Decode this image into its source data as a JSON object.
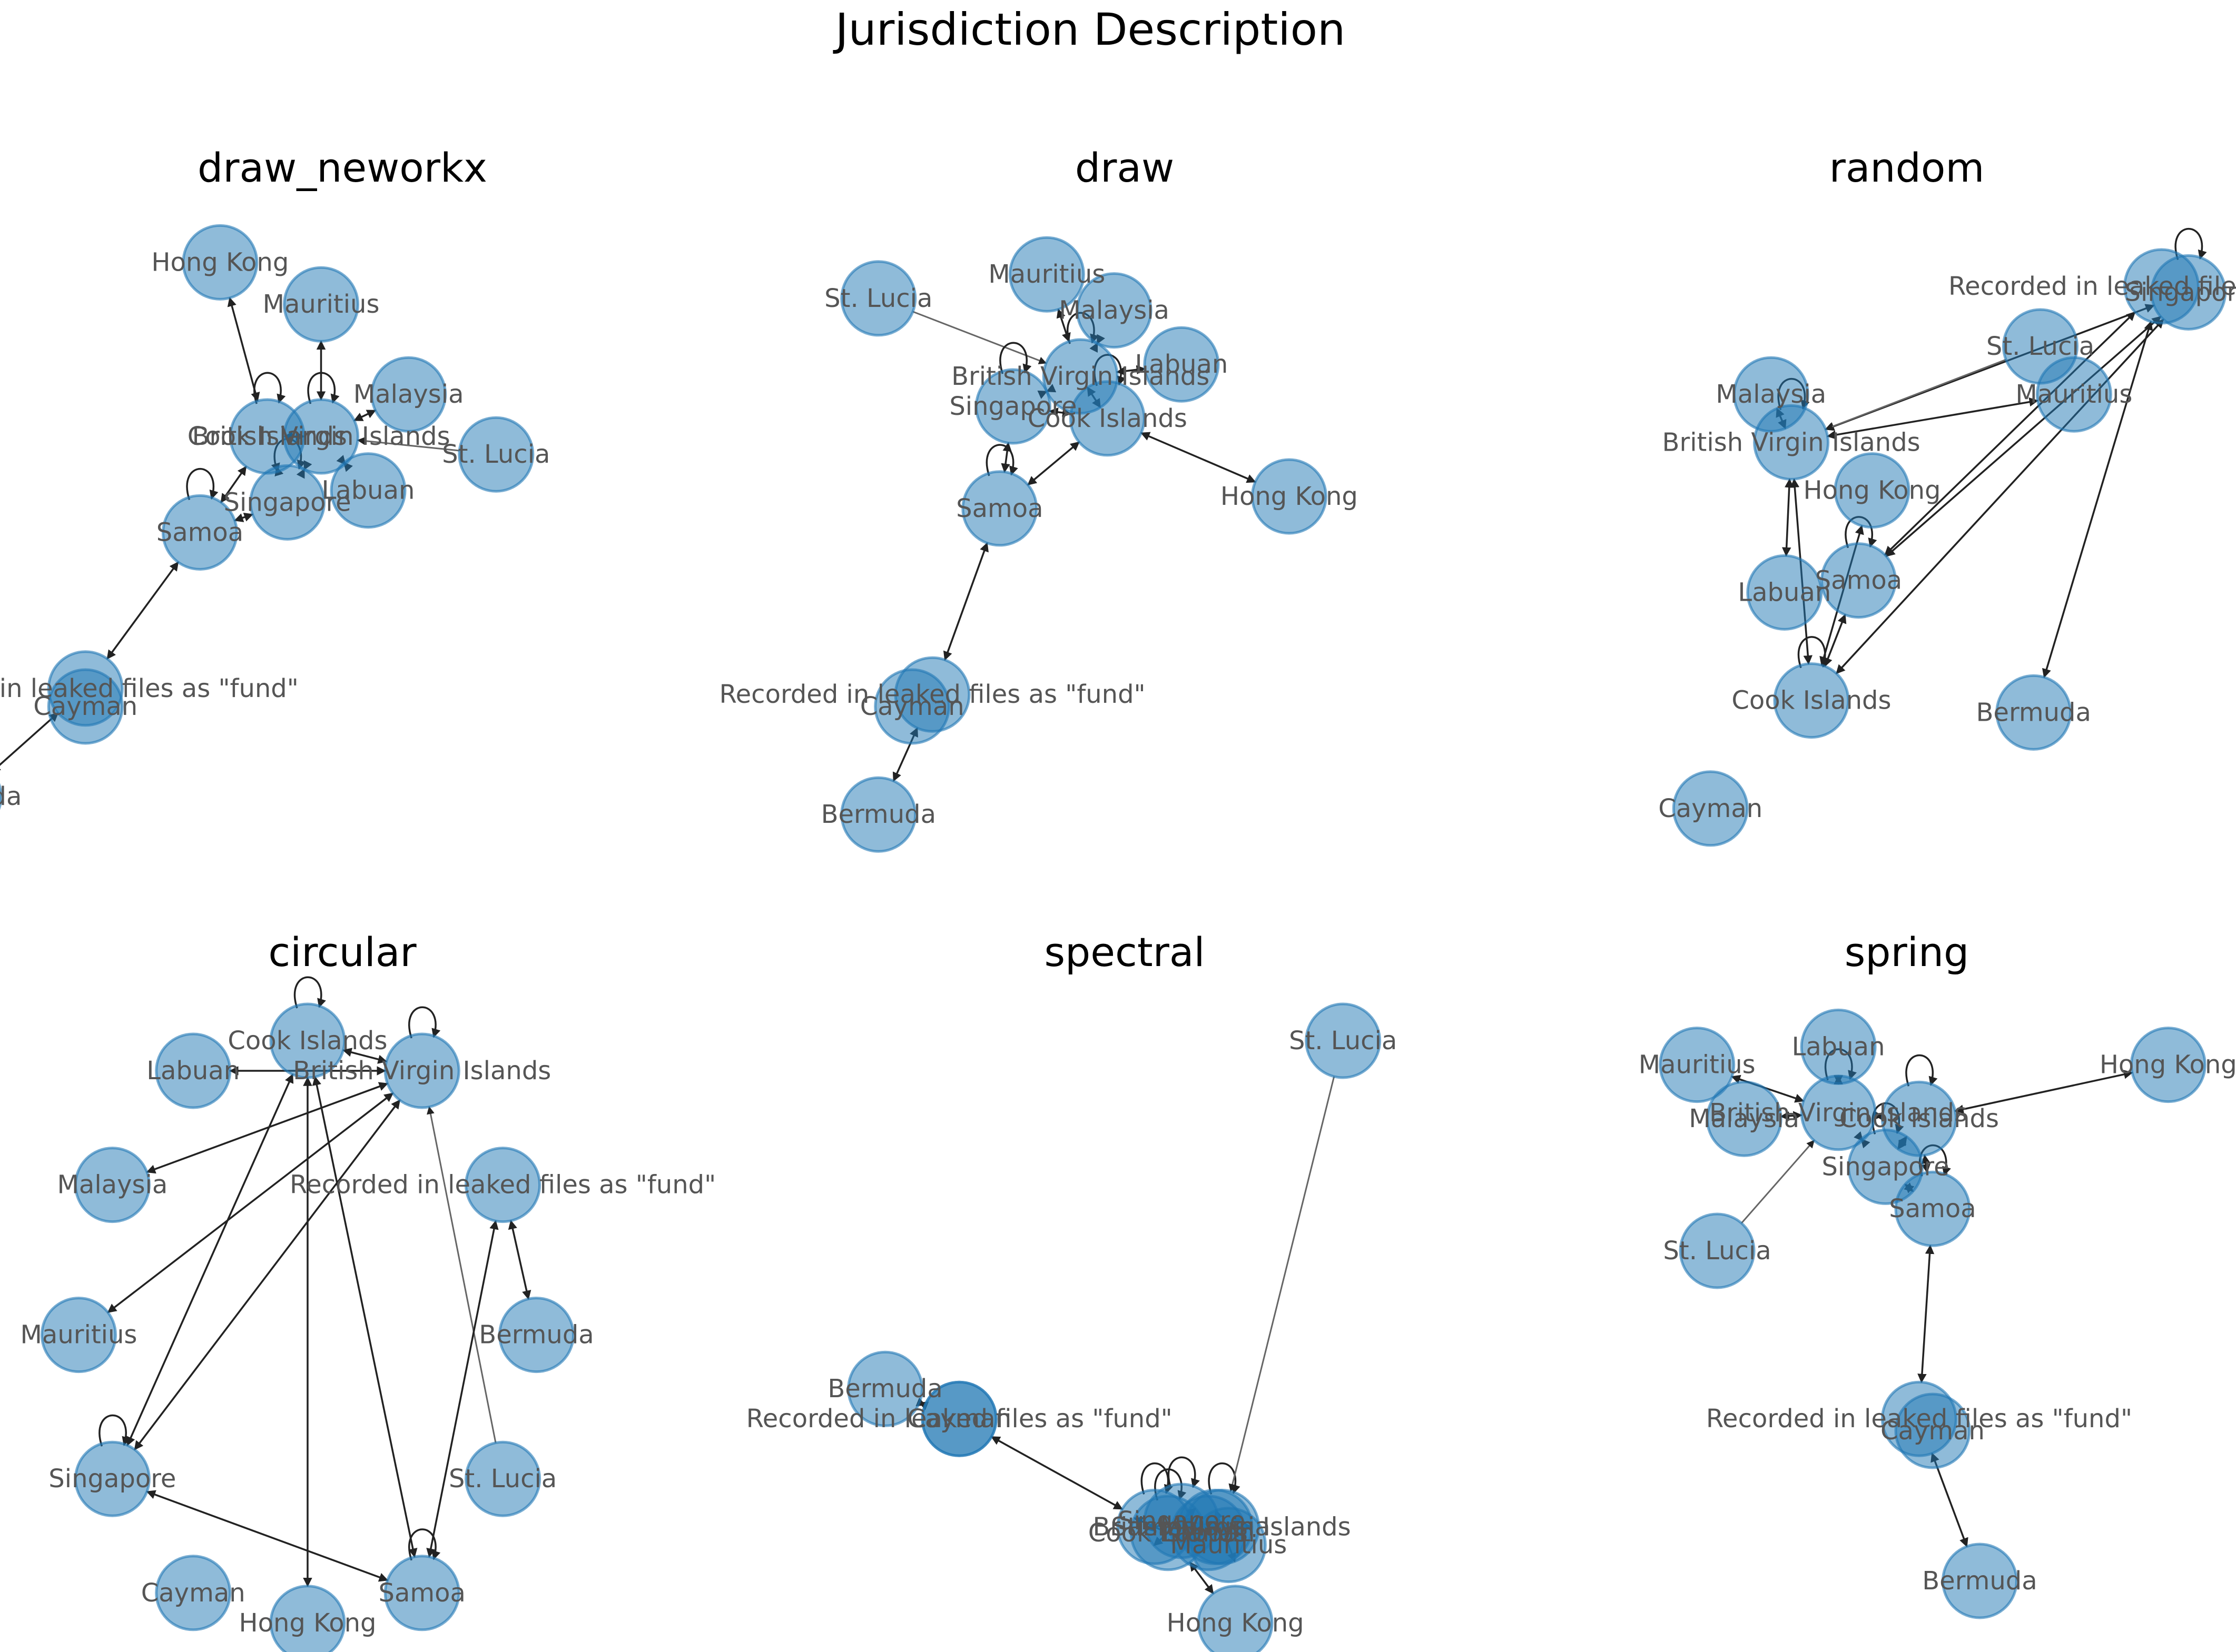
{
  "title": "Jurisdiction Description",
  "colors": {
    "node": "#1f77b4",
    "edge": "#222222",
    "label": "#555555"
  },
  "nodes": [
    "Hong Kong",
    "Mauritius",
    "Malaysia",
    "St. Lucia",
    "Cook Islands",
    "British Virgin Islands",
    "Labuan",
    "Singapore",
    "Samoa",
    "Recorded in leaked files as \"fund\"",
    "Cayman",
    "Bermuda"
  ],
  "edges": [
    [
      "Hong Kong",
      "Cook Islands"
    ],
    [
      "Cook Islands",
      "Cook Islands"
    ],
    [
      "Cook Islands",
      "British Virgin Islands"
    ],
    [
      "British Virgin Islands",
      "British Virgin Islands"
    ],
    [
      "British Virgin Islands",
      "Mauritius"
    ],
    [
      "British Virgin Islands",
      "Malaysia"
    ],
    [
      "British Virgin Islands",
      "Labuan"
    ],
    [
      "British Virgin Islands",
      "Singapore"
    ],
    [
      "St. Lucia",
      "British Virgin Islands"
    ],
    [
      "Singapore",
      "Singapore"
    ],
    [
      "Singapore",
      "Cook Islands"
    ],
    [
      "Samoa",
      "Samoa"
    ],
    [
      "Samoa",
      "Singapore"
    ],
    [
      "Samoa",
      "Cook Islands"
    ],
    [
      "Samoa",
      "Recorded in leaked files as \"fund\""
    ],
    [
      "Recorded in leaked files as \"fund\"",
      "Bermuda"
    ]
  ],
  "panels": [
    {
      "title": "draw_neworkx",
      "positions": {
        "Hong Kong": [
          0.28,
          0.06
        ],
        "Mauritius": [
          0.43,
          0.13
        ],
        "Malaysia": [
          0.56,
          0.28
        ],
        "St. Lucia": [
          0.69,
          0.38
        ],
        "Cook Islands": [
          0.35,
          0.35
        ],
        "British Virgin Islands": [
          0.43,
          0.35
        ],
        "Labuan": [
          0.5,
          0.44
        ],
        "Singapore": [
          0.38,
          0.46
        ],
        "Samoa": [
          0.25,
          0.51
        ],
        "Recorded in leaked files as \"fund\"": [
          0.08,
          0.77
        ],
        "Cayman": [
          0.08,
          0.8
        ],
        "Bermuda": [
          -0.1,
          0.95
        ]
      }
    },
    {
      "title": "draw",
      "positions": {
        "St. Lucia": [
          0.1,
          0.12
        ],
        "Mauritius": [
          0.35,
          0.08
        ],
        "Malaysia": [
          0.45,
          0.14
        ],
        "Labuan": [
          0.55,
          0.23
        ],
        "British Virgin Islands": [
          0.4,
          0.25
        ],
        "Singapore": [
          0.3,
          0.3
        ],
        "Cook Islands": [
          0.44,
          0.32
        ],
        "Hong Kong": [
          0.71,
          0.45
        ],
        "Samoa": [
          0.28,
          0.47
        ],
        "Recorded in leaked files as \"fund\"": [
          0.18,
          0.78
        ],
        "Cayman": [
          0.15,
          0.8
        ],
        "Bermuda": [
          0.1,
          0.98
        ]
      }
    },
    {
      "title": "random",
      "positions": {
        "Recorded in leaked files as \"fund\"": [
          0.84,
          0.1
        ],
        "Singapore": [
          0.88,
          0.11
        ],
        "St. Lucia": [
          0.66,
          0.2
        ],
        "Malaysia": [
          0.26,
          0.28
        ],
        "Mauritius": [
          0.71,
          0.28
        ],
        "British Virgin Islands": [
          0.29,
          0.36
        ],
        "Hong Kong": [
          0.41,
          0.44
        ],
        "Samoa": [
          0.39,
          0.59
        ],
        "Labuan": [
          0.28,
          0.61
        ],
        "Cook Islands": [
          0.32,
          0.79
        ],
        "Bermuda": [
          0.65,
          0.81
        ],
        "Cayman": [
          0.17,
          0.97
        ]
      }
    },
    {
      "title": "circular",
      "positions": {
        "Cook Islands": [
          0.41,
          0.05
        ],
        "British Virgin Islands": [
          0.58,
          0.1
        ],
        "Labuan": [
          0.24,
          0.1
        ],
        "Recorded in leaked files as \"fund\"": [
          0.7,
          0.29
        ],
        "Malaysia": [
          0.12,
          0.29
        ],
        "Bermuda": [
          0.75,
          0.54
        ],
        "Mauritius": [
          0.07,
          0.54
        ],
        "St. Lucia": [
          0.7,
          0.78
        ],
        "Singapore": [
          0.12,
          0.78
        ],
        "Samoa": [
          0.58,
          0.97
        ],
        "Cayman": [
          0.24,
          0.97
        ],
        "Hong Kong": [
          0.41,
          1.02
        ]
      }
    },
    {
      "title": "spectral",
      "positions": {
        "St. Lucia": [
          0.79,
          0.05
        ],
        "Bermuda": [
          0.11,
          0.63
        ],
        "Recorded in leaked files as \"fund\"": [
          0.22,
          0.68
        ],
        "Cayman": [
          0.22,
          0.68
        ],
        "British Virgin Islands": [
          0.61,
          0.86
        ],
        "Samoa": [
          0.51,
          0.86
        ],
        "Cook Islands": [
          0.53,
          0.87
        ],
        "Singapore": [
          0.55,
          0.85
        ],
        "Labuan": [
          0.59,
          0.87
        ],
        "Malaysia": [
          0.6,
          0.86
        ],
        "Mauritius": [
          0.62,
          0.89
        ],
        "Hong Kong": [
          0.63,
          1.02
        ]
      }
    },
    {
      "title": "spring",
      "positions": {
        "Labuan": [
          0.36,
          0.06
        ],
        "Mauritius": [
          0.15,
          0.09
        ],
        "Hong Kong": [
          0.85,
          0.09
        ],
        "British Virgin Islands": [
          0.36,
          0.17
        ],
        "Cook Islands": [
          0.48,
          0.18
        ],
        "Malaysia": [
          0.22,
          0.18
        ],
        "Singapore": [
          0.43,
          0.26
        ],
        "Samoa": [
          0.5,
          0.33
        ],
        "St. Lucia": [
          0.18,
          0.4
        ],
        "Recorded in leaked files as \"fund\"": [
          0.48,
          0.68
        ],
        "Cayman": [
          0.5,
          0.7
        ],
        "Bermuda": [
          0.57,
          0.95
        ]
      }
    }
  ]
}
